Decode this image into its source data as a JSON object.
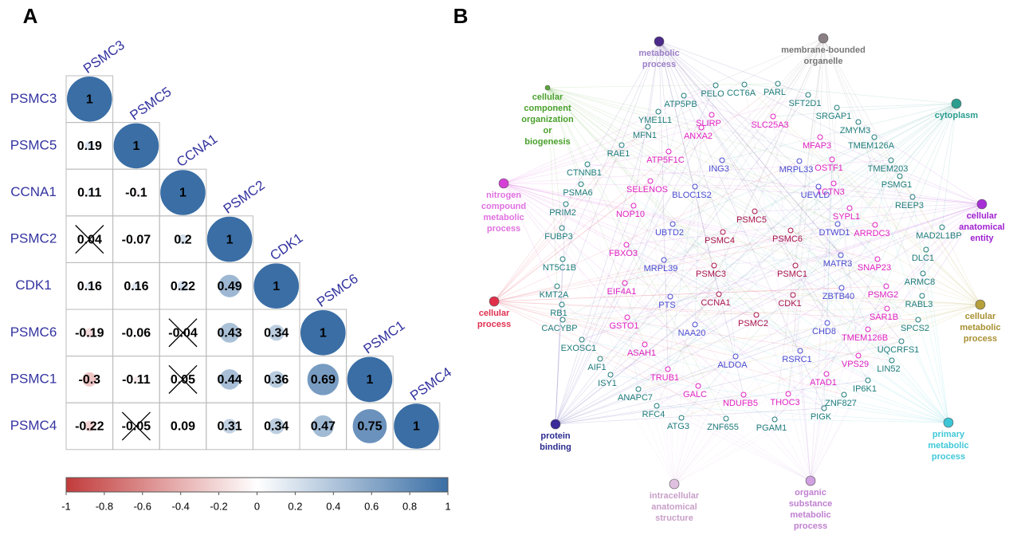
{
  "panel_labels": [
    "A",
    "B"
  ],
  "chart_data": {
    "type": "correlogram",
    "labels": [
      "PSMC3",
      "PSMC5",
      "CCNA1",
      "PSMC2",
      "CDK1",
      "PSMC6",
      "PSMC1",
      "PSMC4"
    ],
    "values": [
      [
        1
      ],
      [
        0.19,
        1
      ],
      [
        0.11,
        -0.1,
        1
      ],
      [
        0.04,
        -0.07,
        0.2,
        1
      ],
      [
        0.16,
        0.16,
        0.22,
        0.49,
        1
      ],
      [
        -0.19,
        -0.06,
        -0.04,
        0.43,
        0.34,
        1
      ],
      [
        -0.3,
        -0.11,
        0.05,
        0.44,
        0.36,
        0.69,
        1
      ],
      [
        -0.22,
        -0.05,
        0.09,
        0.31,
        0.34,
        0.47,
        0.75,
        1
      ]
    ],
    "insignificant": [
      [
        false
      ],
      [
        false,
        false
      ],
      [
        false,
        false,
        false
      ],
      [
        true,
        false,
        false,
        false
      ],
      [
        false,
        false,
        false,
        false,
        false
      ],
      [
        false,
        false,
        true,
        false,
        false,
        false
      ],
      [
        false,
        false,
        true,
        false,
        false,
        false,
        false
      ],
      [
        false,
        true,
        false,
        false,
        false,
        false,
        false,
        false
      ]
    ],
    "color_scale": {
      "low": "#c23b3b",
      "mid": "#ffffff",
      "high": "#3a6ea5"
    },
    "clim": [
      -1,
      1
    ],
    "cticks": [
      -1,
      -0.8,
      -0.6,
      -0.4,
      -0.2,
      0,
      0.2,
      0.4,
      0.6,
      0.8,
      1
    ]
  },
  "network": {
    "hubs": [
      {
        "lines": [
          "metabolic",
          "process"
        ],
        "color": "#4b2a8a",
        "label_color": "#9b7fc7"
      },
      {
        "lines": [
          "membrane-bounded",
          "organelle"
        ],
        "color": "#8a7f84",
        "label_color": "#777777"
      },
      {
        "lines": [
          "cellular",
          "component",
          "organization",
          "or",
          "biogenesis"
        ],
        "color": "#5aa83a",
        "label_color": "#4aa02c"
      },
      {
        "lines": [
          "cytoplasm"
        ],
        "color": "#2a9d8f",
        "label_color": "#2a9d8f"
      },
      {
        "lines": [
          "nitrogen",
          "compound",
          "metabolic",
          "process"
        ],
        "color": "#d63fd6",
        "label_color": "#e070e0"
      },
      {
        "lines": [
          "cellular",
          "anatomical",
          "entity"
        ],
        "color": "#a62fd6",
        "label_color": "#a020d0"
      },
      {
        "lines": [
          "cellular",
          "process"
        ],
        "color": "#e0304a",
        "label_color": "#e03050"
      },
      {
        "lines": [
          "cellular",
          "metabolic",
          "process"
        ],
        "color": "#b5a03a",
        "label_color": "#a89030"
      },
      {
        "lines": [
          "protein",
          "binding"
        ],
        "color": "#3a2a9a",
        "label_color": "#2a2a90"
      },
      {
        "lines": [
          "primary",
          "metabolic",
          "process"
        ],
        "color": "#3cc6d6",
        "label_color": "#40c8d8"
      },
      {
        "lines": [
          "intracellular",
          "anatomical",
          "structure"
        ],
        "color": "#e0c0e0",
        "label_color": "#c8a0c8"
      },
      {
        "lines": [
          "organic",
          "substance",
          "metabolic",
          "process"
        ],
        "color": "#d0a0e0",
        "label_color": "#c080d0"
      }
    ],
    "gene_groups": [
      {
        "color": "#1e7b7b",
        "genes": [
          "PELO",
          "CCT6A",
          "PARL",
          "ATP5PB",
          "SFT2D1",
          "SRGAP1",
          "YME1L1",
          "ZMYM3",
          "MFN1",
          "TMEM126A",
          "RAE1",
          "CTNNB1",
          "TMEM203",
          "PSMG1",
          "PSMA6",
          "REEP3",
          "PRIM2",
          "MAD2L1BP",
          "FUBP3",
          "DLC1",
          "NT5C1B",
          "ARMC8",
          "KMT2A",
          "RABL3",
          "RB1",
          "CACYBP",
          "SPCS2",
          "EXOSC1",
          "UQCRFS1",
          "AIF1",
          "LIN52",
          "ISY1",
          "IP6K1",
          "ANAPC7",
          "ZNF827",
          "RFC4",
          "PIGK",
          "ATG3",
          "ZNF655",
          "PGAM1"
        ]
      },
      {
        "color": "#e020c0",
        "genes": [
          "SLIRP",
          "SLC25A3",
          "ANXA2",
          "MFAP3",
          "ATP5F1C",
          "OSTF1",
          "SELENOS",
          "TCTN3",
          "NOP10",
          "SYPL1",
          "ARRDC3",
          "FBXO3",
          "SNAP23",
          "EIF4A1",
          "PSMG2",
          "GSTO1",
          "SAR1B",
          "TMEM126B",
          "ASAH1",
          "VPS29",
          "TRUB1",
          "ATAD1",
          "GALC",
          "THOC3",
          "NDUFB5"
        ]
      },
      {
        "color": "#4a4ad0",
        "genes": [
          "ING3",
          "MRPL33",
          "BLOC1S2",
          "UEVLD",
          "UBTD2",
          "DTWD1",
          "MRPL39",
          "MATR3",
          "PTS",
          "ZBTB40",
          "NAA20",
          "CHD8",
          "RSRC1",
          "ALDOA"
        ]
      },
      {
        "color": "#a8124a",
        "genes": [
          "PSMC5",
          "PSMC4",
          "PSMC6",
          "PSMC3",
          "PSMC1",
          "CCNA1",
          "CDK1",
          "PSMC2"
        ]
      }
    ]
  }
}
